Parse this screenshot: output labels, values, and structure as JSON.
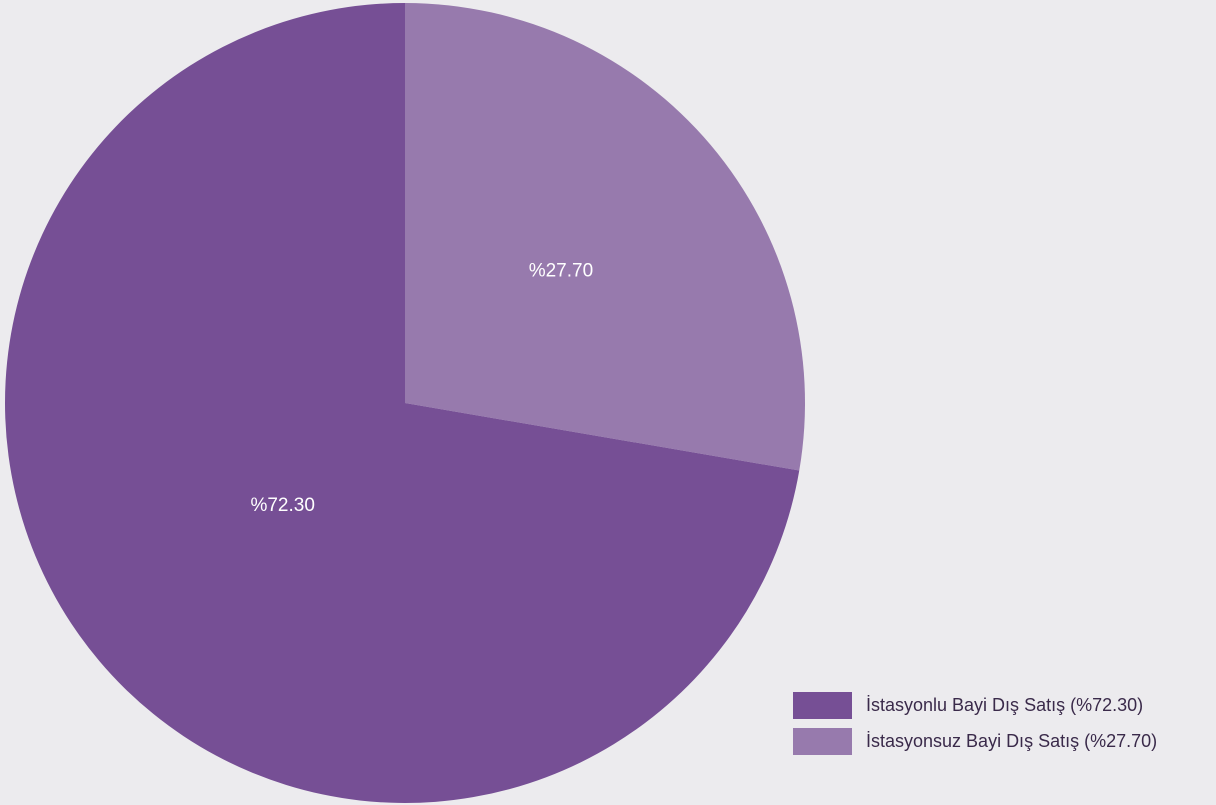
{
  "chart_data": {
    "type": "pie",
    "slices": [
      {
        "label": "İstasyonlu Bayi Dış Satış (%72.30)",
        "value": 72.3,
        "data_label": "%72.30",
        "color": "#764f95"
      },
      {
        "label": "İstasyonsuz Bayi Dış Satış (%27.70)",
        "value": 27.7,
        "data_label": "%27.70",
        "color": "#977aad"
      }
    ],
    "start": "12 o'clock",
    "direction": "clockwise starting with the smaller slice",
    "legend": "bottom-right"
  },
  "colors": {
    "background": "#ecebee",
    "label_text": "#ffffff",
    "legend_text": "#3a2a4a"
  }
}
